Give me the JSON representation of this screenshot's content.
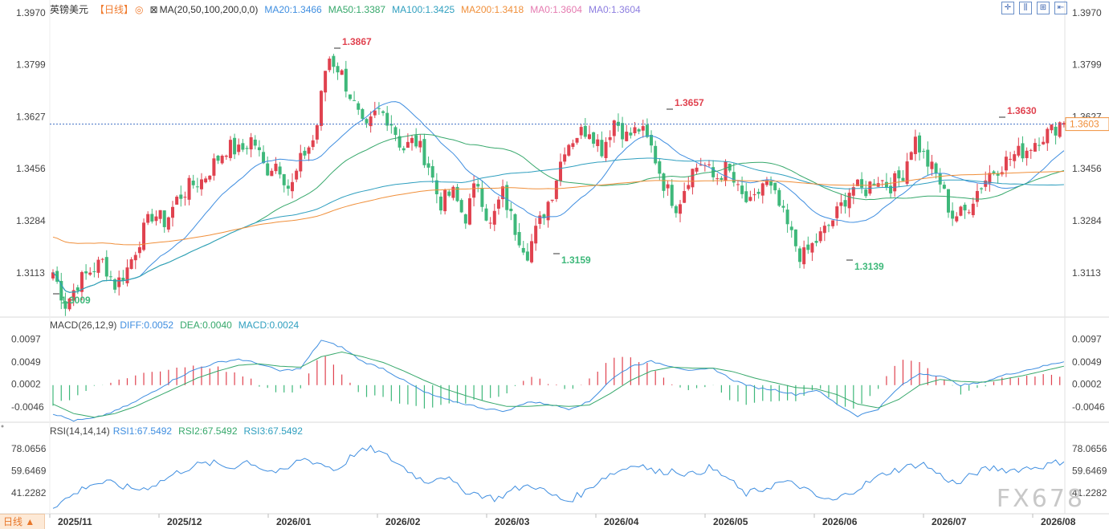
{
  "header": {
    "symbol": "英镑美元",
    "period": "【日线】",
    "period_icon": "◎",
    "ma_label": "MA(20,50,100,200,0,0)",
    "ma20": "MA20:1.3466",
    "ma50": "MA50:1.3387",
    "ma100": "MA100:1.3425",
    "ma200": "MA200:1.3418",
    "ma0a": "MA0:1.3604",
    "ma0b": "MA0:1.3604"
  },
  "macd_header": {
    "label": "MACD(26,12,9)",
    "diff": "DIFF:0.0052",
    "dea": "DEA:0.0040",
    "macd": "MACD:0.0024"
  },
  "rsi_header": {
    "label": "RSI(14,14,14)",
    "rsi1": "RSI1:67.5492",
    "rsi2": "RSI2:67.5492",
    "rsi3": "RSI3:67.5492"
  },
  "toolbar": {
    "period_button": "日线 ▲",
    "watermark": "FX678"
  },
  "icons": [
    "period-circle-icon",
    "ma-toggle-icon",
    "crosshair-icon",
    "candle-type-icon",
    "zoom-icon",
    "collapse-icon",
    "period-up-arrow-icon"
  ],
  "colors": {
    "up": "#e0424f",
    "down": "#3eb87a",
    "ma20": "#3f8ee0",
    "ma50": "#36a86b",
    "ma100": "#2f9fbf",
    "ma200": "#f08f3a",
    "current": "#f08f3a"
  },
  "chart_data": {
    "type": "candlestick",
    "price_axis": {
      "ticks": [
        1.397,
        1.3799,
        1.3627,
        1.3456,
        1.3284,
        1.3113
      ],
      "labels": [
        "1.3970",
        "1.3799",
        "1.3627",
        "1.3456",
        "1.3284",
        "1.3113"
      ],
      "ylim": [
        1.2975,
        1.3975
      ]
    },
    "current_price": 1.3603,
    "current_label": "1.3603",
    "x_labels": [
      "2025/11",
      "2025/12",
      "2026/01",
      "2026/02",
      "2026/03",
      "2026/04",
      "2026/05",
      "2026/06",
      "2026/07",
      "2026/08"
    ],
    "annotations": [
      {
        "text": "1.3009",
        "value": 1.3009,
        "type": "low"
      },
      {
        "text": "1.3867",
        "value": 1.3867,
        "type": "high"
      },
      {
        "text": "1.3159",
        "value": 1.3159,
        "type": "low"
      },
      {
        "text": "1.3657",
        "value": 1.3657,
        "type": "high"
      },
      {
        "text": "1.3139",
        "value": 1.3139,
        "type": "low"
      },
      {
        "text": "1.3630",
        "value": 1.363,
        "type": "high"
      }
    ],
    "anchors": [
      1.3115,
      1.3009,
      1.308,
      1.312,
      1.315,
      1.307,
      1.313,
      1.323,
      1.331,
      1.328,
      1.336,
      1.34,
      1.342,
      1.348,
      1.353,
      1.351,
      1.356,
      1.345,
      1.348,
      1.338,
      1.35,
      1.356,
      1.383,
      1.378,
      1.368,
      1.357,
      1.365,
      1.362,
      1.352,
      1.355,
      1.348,
      1.334,
      1.338,
      1.329,
      1.342,
      1.326,
      1.338,
      1.326,
      1.318,
      1.328,
      1.338,
      1.353,
      1.357,
      1.359,
      1.352,
      1.362,
      1.356,
      1.359,
      1.352,
      1.34,
      1.333,
      1.344,
      1.348,
      1.342,
      1.346,
      1.337,
      1.333,
      1.342,
      1.335,
      1.325,
      1.316,
      1.321,
      1.326,
      1.332,
      1.34,
      1.338,
      1.343,
      1.34,
      1.343,
      1.356,
      1.348,
      1.342,
      1.33,
      1.331,
      1.338,
      1.344,
      1.347,
      1.35,
      1.352,
      1.356,
      1.358,
      1.362
    ],
    "macd": {
      "ticks": [
        0.0097,
        0.0049,
        0.0002,
        -0.0046
      ],
      "labels": [
        "0.0097",
        "0.0049",
        "0.0002",
        "-0.0046"
      ],
      "ylim": [
        -0.0075,
        0.0115
      ],
      "diff_anchors": [
        -0.006,
        -0.0075,
        -0.007,
        -0.0055,
        -0.0035,
        -0.001,
        0.0015,
        0.0035,
        0.0048,
        0.0055,
        0.0045,
        0.003,
        0.0035,
        0.0095,
        0.008,
        0.005,
        0.0035,
        0.001,
        -0.0015,
        -0.003,
        -0.004,
        -0.005,
        -0.0055,
        -0.0035,
        -0.004,
        -0.005,
        -0.0035,
        0.001,
        0.004,
        0.005,
        0.004,
        0.003,
        0.0035,
        0.001,
        -0.0005,
        -0.001,
        -0.002,
        -0.001,
        -0.004,
        -0.0065,
        -0.005,
        -0.0005,
        0.0025,
        0.002,
        0.0,
        0.0005,
        0.002,
        0.003,
        0.004,
        0.005
      ],
      "dea_anchors": [
        -0.004,
        -0.006,
        -0.0068,
        -0.006,
        -0.0045,
        -0.0025,
        -0.0005,
        0.0015,
        0.003,
        0.0042,
        0.0045,
        0.004,
        0.0038,
        0.006,
        0.007,
        0.006,
        0.0048,
        0.003,
        0.001,
        -0.0008,
        -0.0022,
        -0.0035,
        -0.0045,
        -0.0045,
        -0.0042,
        -0.0045,
        -0.0042,
        -0.0018,
        0.001,
        0.003,
        0.0038,
        0.0036,
        0.0036,
        0.0028,
        0.0015,
        0.0005,
        -0.0005,
        -0.0008,
        -0.002,
        -0.004,
        -0.0048,
        -0.003,
        0.0,
        0.0012,
        0.0008,
        0.0006,
        0.0012,
        0.002,
        0.003,
        0.004
      ]
    },
    "rsi": {
      "ticks": [
        78.0656,
        59.6469,
        41.2282
      ],
      "labels": [
        "78.0656",
        "59.6469",
        "41.2282"
      ],
      "ylim": [
        25,
        88
      ],
      "anchors": [
        30,
        38,
        48,
        50,
        46,
        44,
        50,
        58,
        64,
        66,
        62,
        68,
        60,
        58,
        70,
        66,
        60,
        74,
        78,
        70,
        60,
        50,
        56,
        44,
        40,
        36,
        44,
        48,
        40,
        34,
        42,
        54,
        60,
        66,
        58,
        60,
        56,
        62,
        54,
        40,
        44,
        50,
        48,
        38,
        34,
        42,
        50,
        58,
        62,
        66,
        56,
        48,
        58,
        62,
        60,
        62,
        64,
        68
      ]
    }
  }
}
